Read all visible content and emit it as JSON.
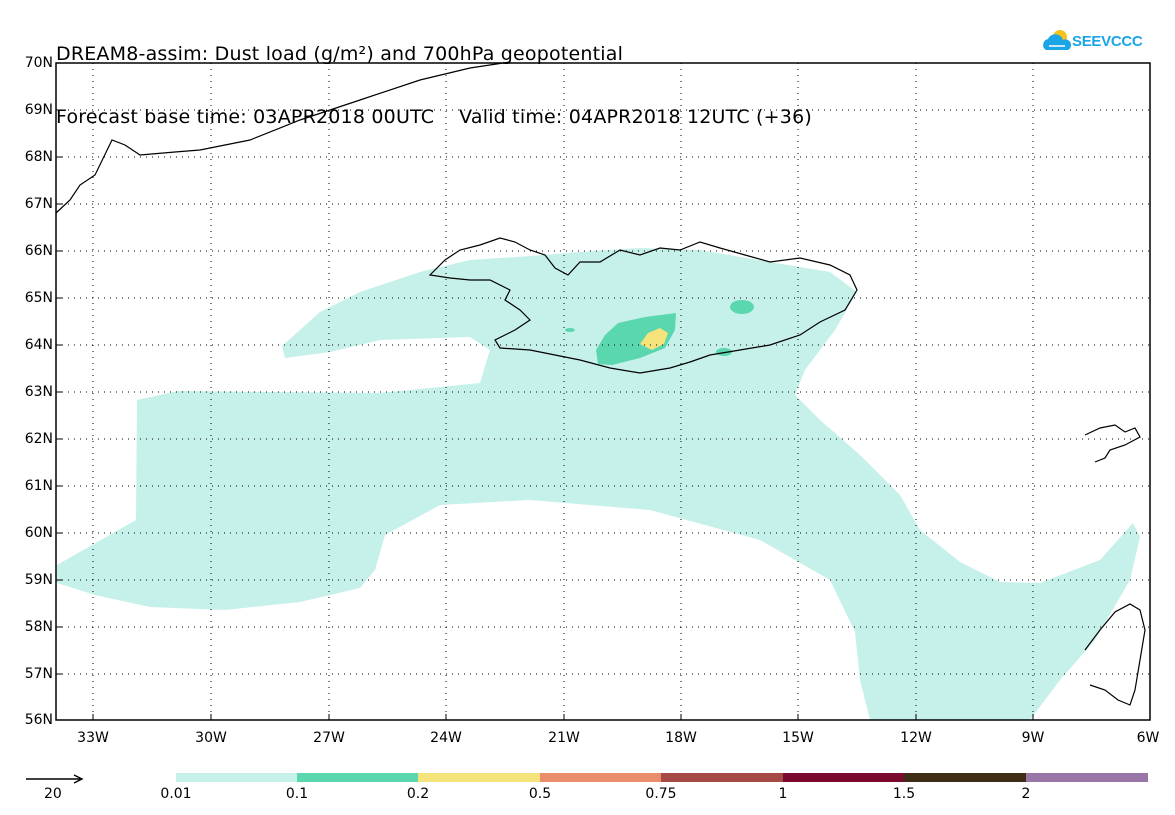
{
  "title": {
    "line1": "DREAM8-assim: Dust load (g/m²) and 700hPa geopotential",
    "line2": "Forecast base time: 03APR2018 00UTC    Valid time: 04APR2018 12UTC (+36)"
  },
  "logo": {
    "text": "SEEVCCC",
    "icon": "cloud-sun-icon",
    "color": "#1aa6e6"
  },
  "map": {
    "lat_labels": [
      "70N",
      "69N",
      "68N",
      "67N",
      "66N",
      "65N",
      "64N",
      "63N",
      "62N",
      "61N",
      "60N",
      "59N",
      "58N",
      "57N",
      "56N"
    ],
    "lon_labels": [
      "33W",
      "30W",
      "27W",
      "24W",
      "21W",
      "18W",
      "15W",
      "12W",
      "9W",
      "6W"
    ],
    "colors": {
      "level1": "#c6f0ea",
      "level2": "#5ad7ae",
      "level3": "#f5e47b",
      "coast": "#000000",
      "grid": "#000000"
    }
  },
  "legend": {
    "arrow_value": "20",
    "levels": [
      "0.01",
      "0.1",
      "0.2",
      "0.5",
      "0.75",
      "1",
      "1.5",
      "2"
    ],
    "colors": [
      "#c6f0ea",
      "#5ad7ae",
      "#f5e47b",
      "#e98d6a",
      "#a64a45",
      "#7a0a2e",
      "#3f2c14",
      "#9a75a8"
    ]
  }
}
